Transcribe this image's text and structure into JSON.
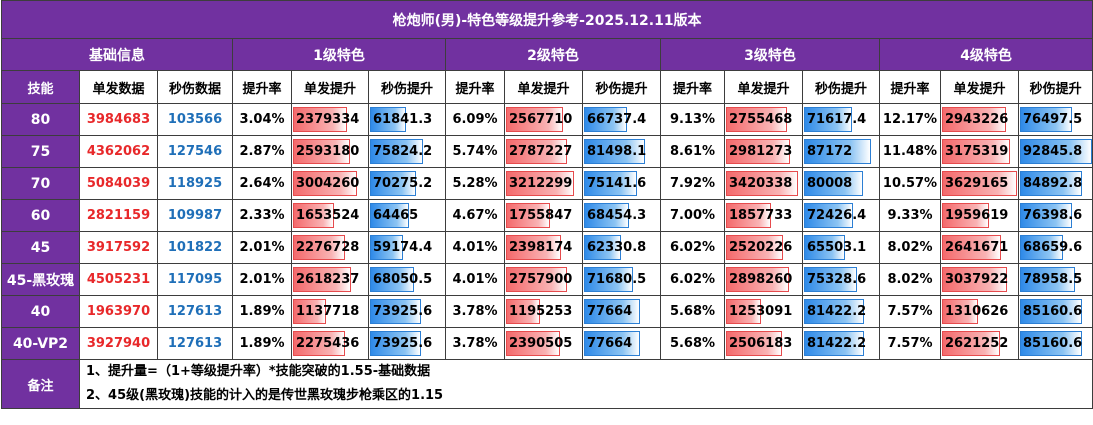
{
  "title": "枪炮师(男)-特色等级提升参考-2025.12.11版本",
  "header": {
    "base_info": "基础信息",
    "levels": [
      "1级特色",
      "2级特色",
      "3级特色",
      "4级特色"
    ]
  },
  "subheader": {
    "skill": "技能",
    "single": "单发数据",
    "dps": "秒伤数据",
    "rate": "提升率",
    "single_up": "单发提升",
    "dps_up": "秒伤提升"
  },
  "colors": {
    "purple": "#7131a0",
    "red_text": "#e8282a",
    "blue_text": "#1f6fb8",
    "red_bar": "#f46a6c",
    "blue_bar": "#2f8ae8"
  },
  "rows": [
    {
      "skill": "80",
      "single": "3984683",
      "dps": "103566",
      "levels": [
        {
          "rate": "3.04%",
          "single_up": "2379334",
          "dps_up": "61841.3"
        },
        {
          "rate": "6.09%",
          "single_up": "2567710",
          "dps_up": "66737.4"
        },
        {
          "rate": "9.13%",
          "single_up": "2755468",
          "dps_up": "71617.4"
        },
        {
          "rate": "12.17%",
          "single_up": "2943226",
          "dps_up": "76497.5"
        }
      ]
    },
    {
      "skill": "75",
      "single": "4362062",
      "dps": "127546",
      "levels": [
        {
          "rate": "2.87%",
          "single_up": "2593180",
          "dps_up": "75824.2"
        },
        {
          "rate": "5.74%",
          "single_up": "2787227",
          "dps_up": "81498.1"
        },
        {
          "rate": "8.61%",
          "single_up": "2981273",
          "dps_up": "87172"
        },
        {
          "rate": "11.48%",
          "single_up": "3175319",
          "dps_up": "92845.8"
        }
      ]
    },
    {
      "skill": "70",
      "single": "5084039",
      "dps": "118925",
      "levels": [
        {
          "rate": "2.64%",
          "single_up": "3004260",
          "dps_up": "70275.2"
        },
        {
          "rate": "5.28%",
          "single_up": "3212299",
          "dps_up": "75141.6"
        },
        {
          "rate": "7.92%",
          "single_up": "3420338",
          "dps_up": "80008"
        },
        {
          "rate": "10.57%",
          "single_up": "3629165",
          "dps_up": "84892.8"
        }
      ]
    },
    {
      "skill": "60",
      "single": "2821159",
      "dps": "109987",
      "levels": [
        {
          "rate": "2.33%",
          "single_up": "1653524",
          "dps_up": "64465"
        },
        {
          "rate": "4.67%",
          "single_up": "1755847",
          "dps_up": "68454.3"
        },
        {
          "rate": "7.00%",
          "single_up": "1857733",
          "dps_up": "72426.4"
        },
        {
          "rate": "9.33%",
          "single_up": "1959619",
          "dps_up": "76398.6"
        }
      ]
    },
    {
      "skill": "45",
      "single": "3917592",
      "dps": "101822",
      "levels": [
        {
          "rate": "2.01%",
          "single_up": "2276728",
          "dps_up": "59174.4"
        },
        {
          "rate": "4.01%",
          "single_up": "2398174",
          "dps_up": "62330.8"
        },
        {
          "rate": "6.02%",
          "single_up": "2520226",
          "dps_up": "65503.1"
        },
        {
          "rate": "8.02%",
          "single_up": "2641671",
          "dps_up": "68659.6"
        }
      ]
    },
    {
      "skill": "45-黑玫瑰",
      "single": "4505231",
      "dps": "117095",
      "levels": [
        {
          "rate": "2.01%",
          "single_up": "2618237",
          "dps_up": "68050.5"
        },
        {
          "rate": "4.01%",
          "single_up": "2757900",
          "dps_up": "71680.5"
        },
        {
          "rate": "6.02%",
          "single_up": "2898260",
          "dps_up": "75328.6"
        },
        {
          "rate": "8.02%",
          "single_up": "3037922",
          "dps_up": "78958.5"
        }
      ]
    },
    {
      "skill": "40",
      "single": "1963970",
      "dps": "127613",
      "levels": [
        {
          "rate": "1.89%",
          "single_up": "1137718",
          "dps_up": "73925.6"
        },
        {
          "rate": "3.78%",
          "single_up": "1195253",
          "dps_up": "77664"
        },
        {
          "rate": "5.68%",
          "single_up": "1253091",
          "dps_up": "81422.2"
        },
        {
          "rate": "7.57%",
          "single_up": "1310626",
          "dps_up": "85160.6"
        }
      ]
    },
    {
      "skill": "40-VP2",
      "single": "3927940",
      "dps": "127613",
      "levels": [
        {
          "rate": "1.89%",
          "single_up": "2275436",
          "dps_up": "73925.6"
        },
        {
          "rate": "3.78%",
          "single_up": "2390505",
          "dps_up": "77664"
        },
        {
          "rate": "5.68%",
          "single_up": "2506183",
          "dps_up": "81422.2"
        },
        {
          "rate": "7.57%",
          "single_up": "2621252",
          "dps_up": "85160.6"
        }
      ]
    }
  ],
  "notes": {
    "label": "备注",
    "line1": "1、提升量=（1+等级提升率）*技能突破的1.55-基础数据",
    "line2": "2、45级(黑玫瑰)技能的计入的是传世黑玫瑰步枪乘区的1.15"
  }
}
